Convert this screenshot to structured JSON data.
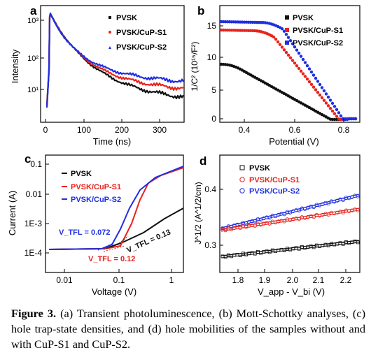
{
  "panels": {
    "a": {
      "letter": "a",
      "xlabel": "Time (ns)",
      "ylabel": "Intensity",
      "xticks": [
        "0",
        "100",
        "200",
        "300"
      ],
      "yticks": [
        "10³",
        "10²",
        "10¹"
      ],
      "legend": [
        "PVSK",
        "PVSK/CuP-S1",
        "PVSK/CuP-S2"
      ]
    },
    "b": {
      "letter": "b",
      "xlabel": "Potential (V)",
      "ylabel": "1/C² (10¹⁵/F²)",
      "xticks": [
        "0.4",
        "0.6",
        "0.8"
      ],
      "yticks": [
        "0",
        "5",
        "10",
        "15"
      ],
      "legend": [
        "PVSK",
        "PVSK/CuP-S1",
        "PVSK/CuP-S2"
      ]
    },
    "c": {
      "letter": "c",
      "xlabel": "Voltage (V)",
      "ylabel": "Current (A)",
      "xticks": [
        "0.01",
        "0.1",
        "1"
      ],
      "yticks": [
        "0.1",
        "0.01",
        "1E-3",
        "1E-4"
      ],
      "legend": [
        "PVSK",
        "PVSK/CuP-S1",
        "PVSK/CuP-S2"
      ],
      "annotations": [
        "V_TFL = 0.072",
        "V_TFL = 0.12",
        "V_TFL = 0.13"
      ]
    },
    "d": {
      "letter": "d",
      "xlabel": "V_app - V_bi (V)",
      "ylabel": "J^1/2 (A^1/2/cm)",
      "xticks": [
        "1.8",
        "1.9",
        "2.0",
        "2.1",
        "2.2"
      ],
      "yticks": [
        "0.3",
        "0.4"
      ],
      "legend": [
        "PVSK",
        "PVSK/CuP-S1",
        "PVSK/CuP-S2"
      ]
    }
  },
  "colors": {
    "pvsk": "#111111",
    "s1": "#e8231d",
    "s2": "#1f2fe0"
  },
  "caption": {
    "label": "Figure 3.",
    "text": "(a) Transient photoluminescence, (b) Mott-Schottky analyses, (c) hole trap-state densities, and (d) hole mobilities of the samples without and with CuP-S1 and CuP-S2."
  }
}
